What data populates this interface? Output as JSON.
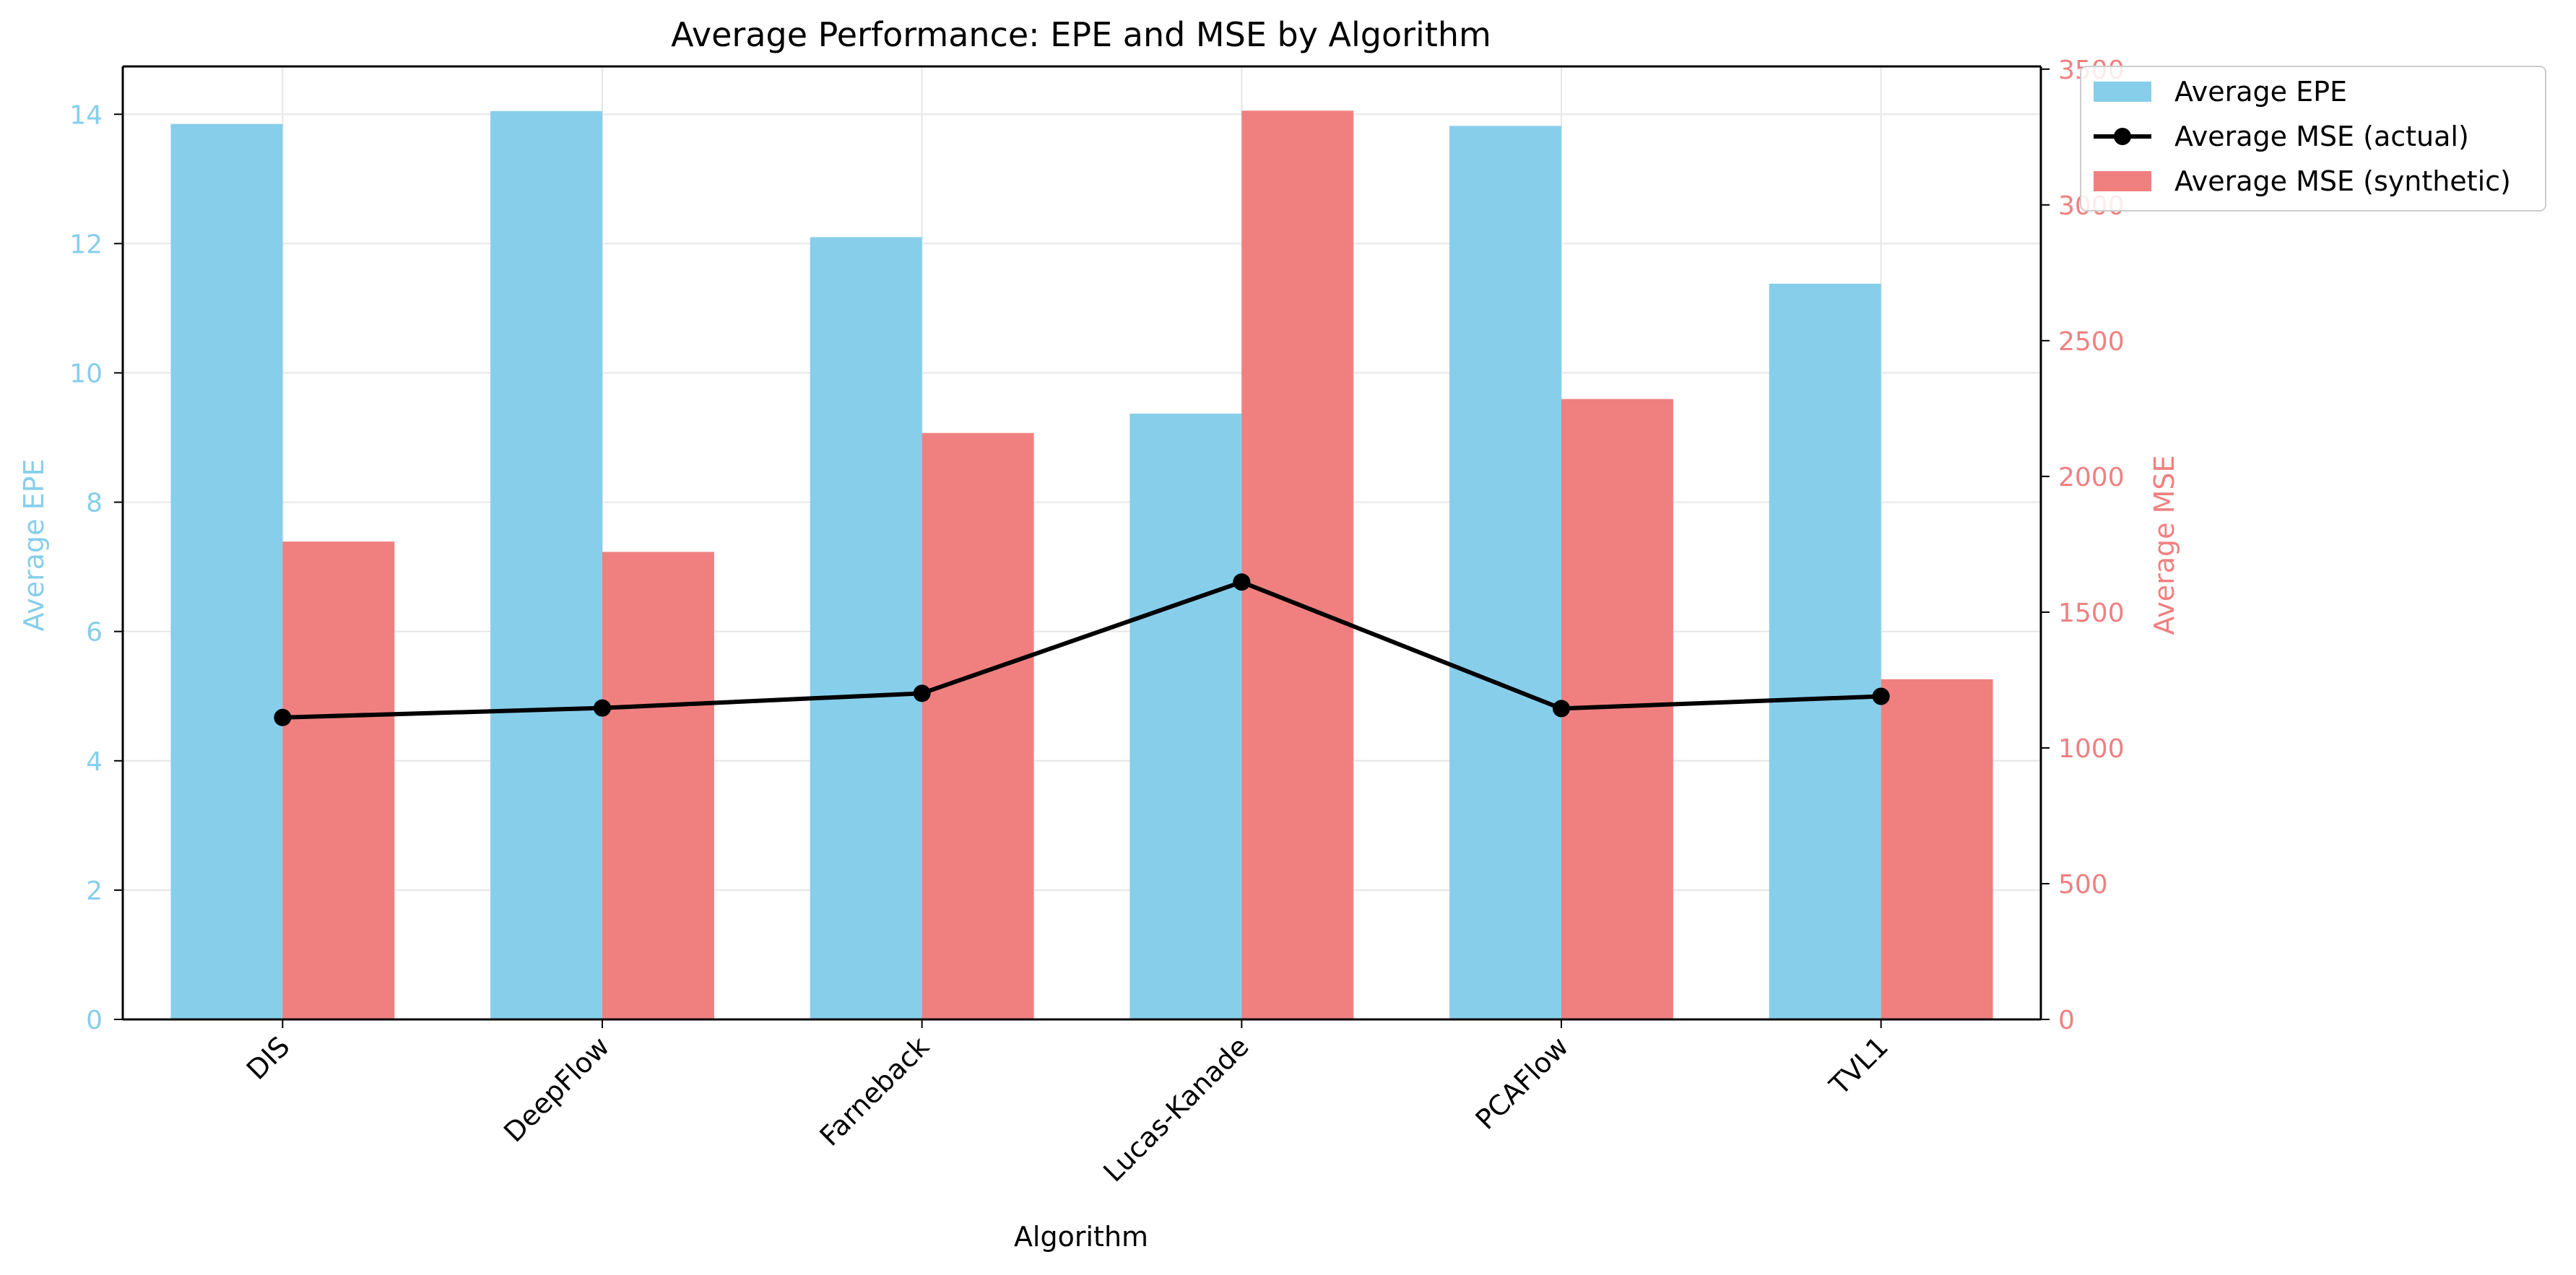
{
  "chart_data": {
    "type": "bar",
    "title": "Average Performance: EPE and MSE by Algorithm",
    "xlabel": "Algorithm",
    "ylabel_left": "Average EPE",
    "ylabel_right": "Average MSE",
    "categories": [
      "DIS",
      "DeepFlow",
      "Farneback",
      "Lucas-Kanade",
      "PCAFlow",
      "TVL1"
    ],
    "ylim_left": [
      0,
      14.74
    ],
    "ylim_right": [
      0,
      3510
    ],
    "yticks_left": [
      "0",
      "2",
      "4",
      "6",
      "8",
      "10",
      "12",
      "14"
    ],
    "yticks_right": [
      "0",
      "500",
      "1000",
      "1500",
      "2000",
      "2500",
      "3000",
      "3500"
    ],
    "grid": true,
    "legend_position": "top-right, outside plot",
    "series": [
      {
        "name": "Average EPE",
        "type": "bar",
        "axis": "left",
        "color": "#87CEEB",
        "values": [
          13.85,
          14.05,
          12.1,
          9.37,
          13.82,
          11.38
        ]
      },
      {
        "name": "Average MSE (actual)",
        "type": "line",
        "axis": "right",
        "color": "#000000",
        "values": [
          1112,
          1147,
          1201,
          1611,
          1145,
          1190
        ]
      },
      {
        "name": "Average MSE (synthetic)",
        "type": "bar",
        "axis": "right",
        "color": "#F08080",
        "values": [
          1760,
          1722,
          2160,
          3347,
          2285,
          1253
        ]
      }
    ],
    "colors": {
      "left_axis": "#87CEEB",
      "right_axis": "#F08080",
      "grid": "#e6e6e6",
      "axis_line": "#000000"
    }
  }
}
